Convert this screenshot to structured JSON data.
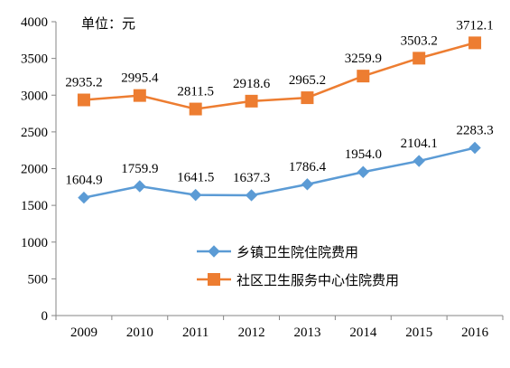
{
  "chart_data": {
    "type": "line",
    "unit_note": "单位：元",
    "categories": [
      "2009",
      "2010",
      "2011",
      "2012",
      "2013",
      "2014",
      "2015",
      "2016"
    ],
    "ylim": [
      0,
      4000
    ],
    "yticks": [
      0,
      500,
      1000,
      1500,
      2000,
      2500,
      3000,
      3500,
      4000
    ],
    "grid": false,
    "legend_position": "right-middle",
    "series": [
      {
        "name": "乡镇卫生院住院费用",
        "color": "#5B9BD5",
        "marker": "diamond",
        "values": [
          1604.9,
          1759.9,
          1641.5,
          1637.3,
          1786.4,
          1954.0,
          2104.1,
          2283.3
        ],
        "labels": [
          "1604.9",
          "1759.9",
          "1641.5",
          "1637.3",
          "1786.4",
          "1954.0",
          "2104.1",
          "2283.3"
        ]
      },
      {
        "name": "社区卫生服务中心住院费用",
        "color": "#ED7D31",
        "marker": "square",
        "values": [
          2935.2,
          2995.4,
          2811.5,
          2918.6,
          2965.2,
          3259.9,
          3503.2,
          3712.1
        ],
        "labels": [
          "2935.2",
          "2995.4",
          "2811.5",
          "2918.6",
          "2965.2",
          "3259.9",
          "3503.2",
          "3712.1"
        ]
      }
    ]
  }
}
